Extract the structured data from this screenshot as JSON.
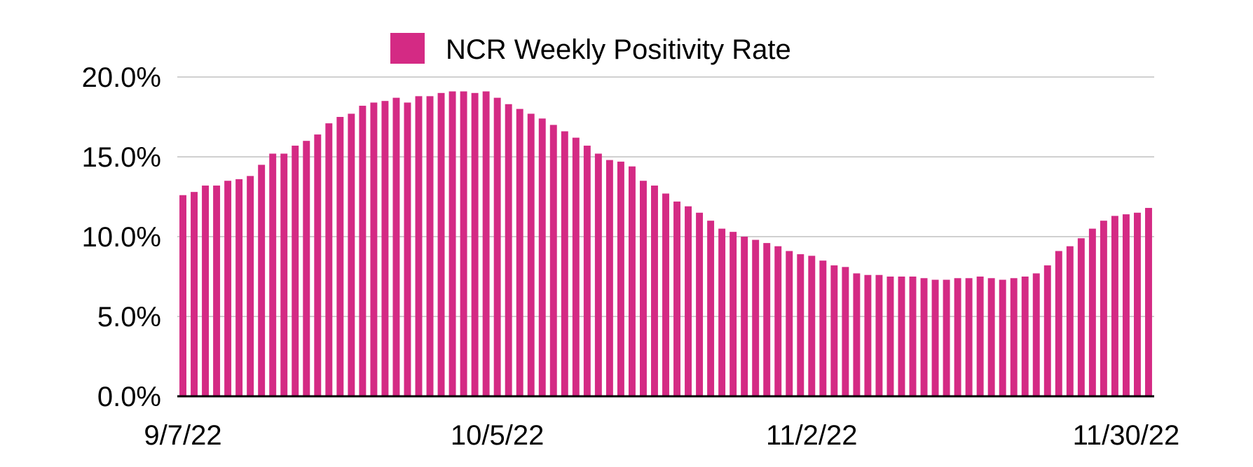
{
  "chart_data": {
    "type": "bar",
    "title": "",
    "xlabel": "",
    "ylabel": "",
    "legend": {
      "label": "NCR Weekly Positivity Rate",
      "position": "top"
    },
    "color": "#D42A84",
    "ylim": [
      0,
      20
    ],
    "y_ticks": [
      0,
      5,
      10,
      15,
      20
    ],
    "y_tick_labels": [
      "0.0%",
      "5.0%",
      "10.0%",
      "15.0%",
      "20.0%"
    ],
    "x_ticks": [
      {
        "label": "9/7/22",
        "index": 0
      },
      {
        "label": "10/5/22",
        "index": 28
      },
      {
        "label": "11/2/22",
        "index": 56
      },
      {
        "label": "11/30/22",
        "index": 84
      }
    ],
    "start_date": "9/7/22",
    "end_date": "11/30/22",
    "grid": true,
    "series": [
      {
        "name": "NCR Weekly Positivity Rate",
        "values": [
          12.6,
          12.8,
          13.2,
          13.2,
          13.5,
          13.6,
          13.8,
          14.5,
          15.2,
          15.2,
          15.7,
          16.0,
          16.4,
          17.1,
          17.5,
          17.7,
          18.2,
          18.4,
          18.5,
          18.7,
          18.4,
          18.8,
          18.8,
          19.0,
          19.1,
          19.1,
          19.0,
          19.1,
          18.7,
          18.3,
          18.0,
          17.7,
          17.4,
          17.0,
          16.6,
          16.2,
          15.7,
          15.2,
          14.8,
          14.7,
          14.4,
          13.5,
          13.2,
          12.7,
          12.2,
          11.9,
          11.5,
          11.0,
          10.5,
          10.3,
          10.0,
          9.8,
          9.6,
          9.4,
          9.1,
          8.9,
          8.8,
          8.5,
          8.2,
          8.1,
          7.7,
          7.6,
          7.6,
          7.5,
          7.5,
          7.5,
          7.4,
          7.3,
          7.3,
          7.4,
          7.4,
          7.5,
          7.4,
          7.3,
          7.4,
          7.5,
          7.7,
          8.2,
          9.1,
          9.4,
          9.9,
          10.5,
          11.0,
          11.3,
          11.4,
          11.5,
          11.8
        ]
      }
    ]
  }
}
